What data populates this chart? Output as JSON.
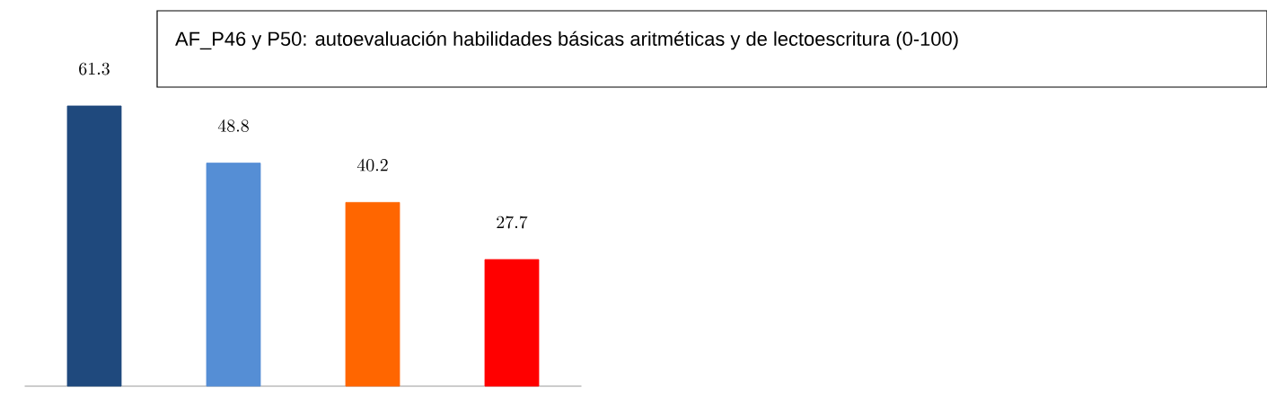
{
  "chart_data": {
    "type": "bar",
    "title": "AF_P46 y P50: autoevaluación habilidades básicas aritméticas y de lectoescritura (0-100)",
    "categories": [
      null,
      null,
      null,
      null
    ],
    "values": [
      61.3,
      48.8,
      40.2,
      27.7
    ],
    "colors": [
      "#1f497d",
      "#558ed5",
      "#ff6600",
      "#ff0000"
    ],
    "data_labels": true
  }
}
